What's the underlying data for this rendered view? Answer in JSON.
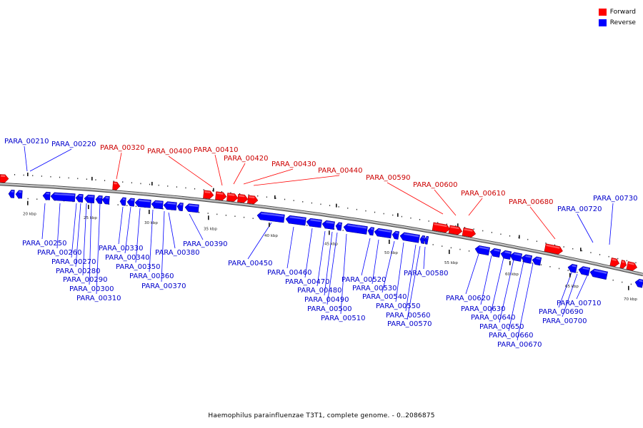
{
  "caption": "Haemophilus parainfluenzae T3T1, complete genome. - 0..2086875",
  "legend": {
    "forward": {
      "label": "Forward",
      "color": "#ff0000"
    },
    "reverse": {
      "label": "Reverse",
      "color": "#0000ff"
    }
  },
  "colors": {
    "forward_label": "#cc0000",
    "reverse_label": "#0000cc",
    "backbone": "#808080"
  },
  "scale": {
    "unit": "kbp",
    "major_ticks": [
      "20 kbp",
      "25 kbp",
      "30 kbp",
      "35 kbp",
      "40 kbp",
      "45 kbp",
      "50 kbp",
      "55 kbp",
      "60 kbp",
      "65 kbp",
      "70 kbp"
    ]
  },
  "forward_labels": [
    "PARA_00320",
    "PARA_00400",
    "PARA_00410",
    "PARA_00420",
    "PARA_00430",
    "PARA_00440",
    "PARA_00590",
    "PARA_00600",
    "PARA_00610",
    "PARA_00680"
  ],
  "reverse_labels": [
    "PARA_00210",
    "PARA_00220",
    "PARA_00250",
    "PARA_00260",
    "PARA_00270",
    "PARA_00280",
    "PARA_00290",
    "PARA_00300",
    "PARA_00310",
    "PARA_00330",
    "PARA_00340",
    "PARA_00350",
    "PARA_00360",
    "PARA_00370",
    "PARA_00380",
    "PARA_00390",
    "PARA_00450",
    "PARA_00460",
    "PARA_00470",
    "PARA_00480",
    "PARA_00490",
    "PARA_00500",
    "PARA_00510",
    "PARA_00520",
    "PARA_00530",
    "PARA_00540",
    "PARA_00550",
    "PARA_00560",
    "PARA_00570",
    "PARA_00580",
    "PARA_00620",
    "PARA_00630",
    "PARA_00640",
    "PARA_00650",
    "PARA_00660",
    "PARA_00670",
    "PARA_00690",
    "PARA_00700",
    "PARA_00710",
    "PARA_00720",
    "PARA_00730"
  ]
}
